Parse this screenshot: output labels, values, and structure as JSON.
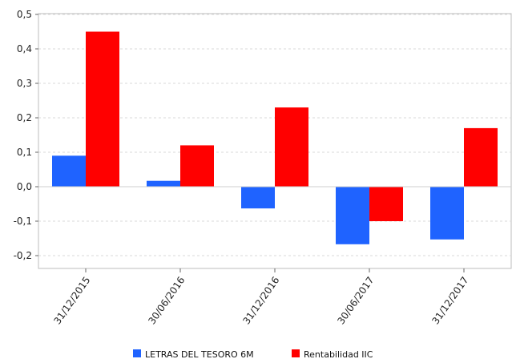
{
  "chart_data": {
    "type": "bar",
    "categories": [
      "31/12/2015",
      "30/06/2016",
      "31/12/2016",
      "30/06/2017",
      "31/12/2017"
    ],
    "series": [
      {
        "name": "LETRAS DEL TESORO 6M",
        "color": "#1f63ff",
        "values": [
          0.09,
          0.017,
          -0.063,
          -0.167,
          -0.153
        ]
      },
      {
        "name": "Rentabilidad IIC",
        "color": "#ff0000",
        "values": [
          0.45,
          0.12,
          0.23,
          -0.1,
          0.17
        ]
      }
    ],
    "ylim": [
      -0.225,
      0.5
    ],
    "yticks": [
      "0,5",
      "0,4",
      "0,3",
      "0,2",
      "0,1",
      "0,0",
      "-0,1",
      "-0,2"
    ],
    "ytick_values": [
      0.5,
      0.4,
      0.3,
      0.2,
      0.1,
      0.0,
      -0.1,
      -0.2
    ],
    "grid": true,
    "legend": "bottom"
  }
}
